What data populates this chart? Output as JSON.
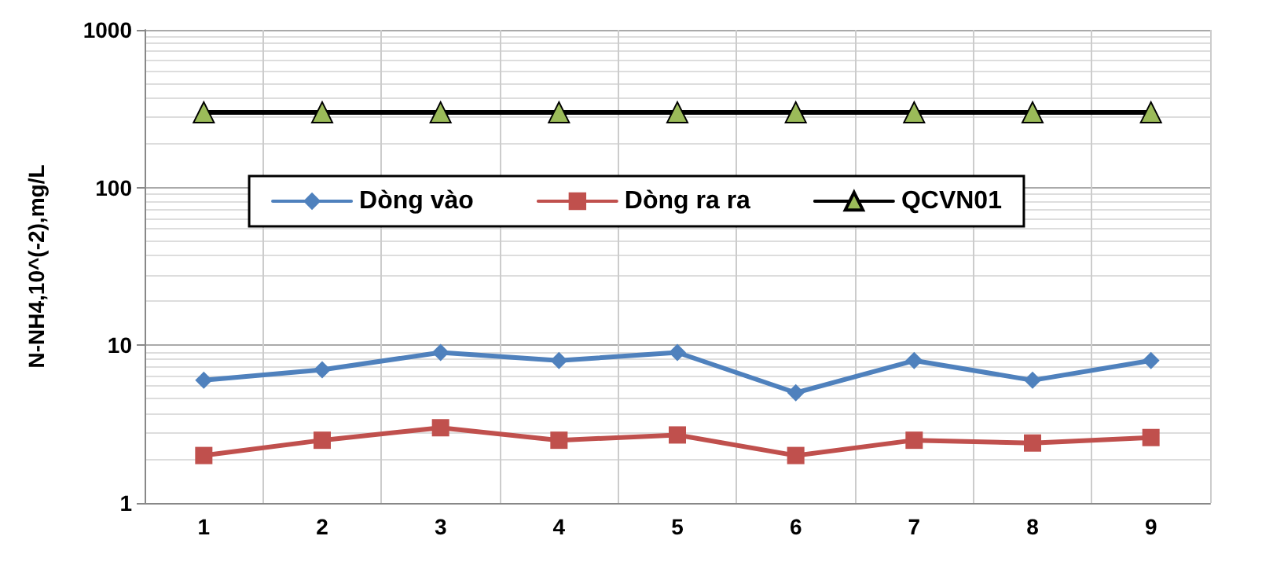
{
  "chart_data": {
    "type": "line",
    "ylabel": "N-NH4,10^(-2),mg/L",
    "categories": [
      "1",
      "2",
      "3",
      "4",
      "5",
      "6",
      "7",
      "8",
      "9"
    ],
    "series": [
      {
        "name": "Dòng vào",
        "color": "#4f81bd",
        "marker": "diamond",
        "values": [
          6,
          7,
          9,
          8,
          9,
          5,
          8,
          6,
          8
        ]
      },
      {
        "name": "Dòng ra ra",
        "color": "#c0504d",
        "marker": "square",
        "values": [
          2,
          2.5,
          3,
          2.5,
          2.7,
          2,
          2.5,
          2.4,
          2.6
        ]
      },
      {
        "name": "QCVN01",
        "color": "#000000",
        "marker": "triangle",
        "values": [
          300,
          300,
          300,
          300,
          300,
          300,
          300,
          300,
          300
        ]
      }
    ],
    "log": true,
    "ylim": [
      1,
      1000
    ],
    "yticks": [
      1,
      10,
      100,
      1000
    ],
    "grid": true,
    "legend": "top"
  }
}
